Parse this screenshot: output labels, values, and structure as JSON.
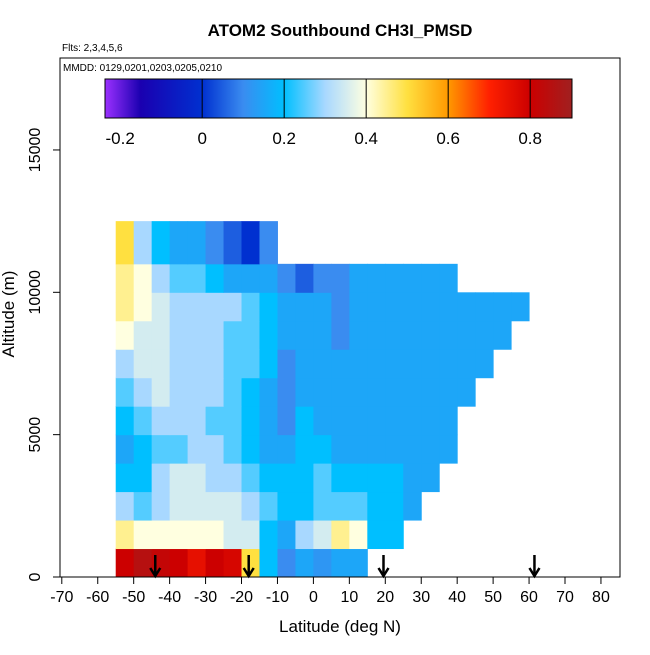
{
  "chart_data": {
    "type": "heatmap",
    "title": "ATOM2 Southbound CH3I_PMSD",
    "subtitle": "Flts: 2,3,4,5,6",
    "annotation": "MMDD: 0129,0201,0203,0205,0210",
    "x_label": "Latitude (deg N)",
    "y_label": "Altitude (m)",
    "xlim": [
      -70.5,
      85.3
    ],
    "ylim": [
      0,
      18230
    ],
    "xticks": [
      -70,
      -60,
      -50,
      -40,
      -30,
      -20,
      -10,
      0,
      10,
      20,
      30,
      40,
      50,
      60,
      70,
      80
    ],
    "yticks": [
      0,
      5000,
      10000,
      15000
    ],
    "x_edges": [
      -55,
      -50,
      -45,
      -40,
      -35,
      -30,
      -25,
      -20,
      -15,
      -10,
      -5,
      0,
      5,
      10,
      15,
      20,
      25,
      30,
      35,
      40,
      45,
      50,
      55,
      60
    ],
    "y_edges": [
      0,
      1000,
      2000,
      3000,
      4000,
      5000,
      6000,
      7000,
      8000,
      9000,
      10000,
      11000,
      12500
    ],
    "z": [
      [
        0.8,
        0.85,
        0.82,
        0.8,
        0.75,
        0.8,
        0.78,
        0.5,
        0.2,
        0.1,
        0.15,
        0.12,
        0.15,
        0.15,
        null,
        null,
        null,
        null,
        null,
        null,
        null,
        null,
        null
      ],
      [
        0.45,
        0.4,
        0.4,
        0.4,
        0.4,
        0.4,
        0.35,
        0.35,
        0.2,
        0.15,
        0.3,
        0.35,
        0.45,
        0.4,
        0.2,
        0.2,
        null,
        null,
        null,
        null,
        null,
        null,
        null
      ],
      [
        0.3,
        0.25,
        0.3,
        0.35,
        0.35,
        0.35,
        0.35,
        0.3,
        0.25,
        0.2,
        0.2,
        0.25,
        0.25,
        0.25,
        0.2,
        0.2,
        0.15,
        null,
        null,
        null,
        null,
        null,
        null
      ],
      [
        0.2,
        0.2,
        0.3,
        0.35,
        0.35,
        0.3,
        0.3,
        0.25,
        0.2,
        0.2,
        0.2,
        0.25,
        0.2,
        0.2,
        0.2,
        0.2,
        0.15,
        0.15,
        null,
        null,
        null,
        null,
        null
      ],
      [
        0.15,
        0.2,
        0.25,
        0.25,
        0.3,
        0.3,
        0.25,
        0.2,
        0.15,
        0.15,
        0.2,
        0.2,
        0.15,
        0.15,
        0.15,
        0.15,
        0.15,
        0.15,
        0.15,
        null,
        null,
        null,
        null
      ],
      [
        0.2,
        0.25,
        0.3,
        0.3,
        0.3,
        0.25,
        0.25,
        0.2,
        0.15,
        0.1,
        0.2,
        0.15,
        0.15,
        0.15,
        0.15,
        0.15,
        0.15,
        0.15,
        0.15,
        null,
        null,
        null,
        null
      ],
      [
        0.25,
        0.3,
        0.35,
        0.3,
        0.3,
        0.3,
        0.25,
        0.2,
        0.15,
        0.1,
        0.15,
        0.15,
        0.15,
        0.15,
        0.15,
        0.15,
        0.15,
        0.15,
        0.15,
        0.15,
        null,
        null,
        null
      ],
      [
        0.3,
        0.35,
        0.35,
        0.3,
        0.3,
        0.3,
        0.25,
        0.25,
        0.2,
        0.1,
        0.15,
        0.15,
        0.15,
        0.15,
        0.15,
        0.15,
        0.15,
        0.15,
        0.15,
        0.15,
        0.15,
        null,
        null
      ],
      [
        0.4,
        0.35,
        0.35,
        0.3,
        0.3,
        0.3,
        0.25,
        0.25,
        0.2,
        0.15,
        0.15,
        0.15,
        0.1,
        0.15,
        0.15,
        0.15,
        0.15,
        0.15,
        0.15,
        0.15,
        0.15,
        0.15,
        null
      ],
      [
        0.45,
        0.4,
        0.35,
        0.3,
        0.3,
        0.3,
        0.3,
        0.25,
        0.2,
        0.15,
        0.15,
        0.15,
        0.1,
        0.15,
        0.15,
        0.15,
        0.15,
        0.15,
        0.15,
        0.15,
        0.15,
        0.15,
        0.15
      ],
      [
        0.45,
        0.4,
        0.3,
        0.25,
        0.25,
        0.2,
        0.15,
        0.15,
        0.15,
        0.1,
        0.05,
        0.1,
        0.1,
        0.15,
        0.15,
        0.15,
        0.15,
        0.15,
        0.15,
        null,
        null,
        null,
        null
      ],
      [
        0.5,
        0.3,
        0.2,
        0.15,
        0.15,
        0.1,
        0.05,
        0.0,
        0.1,
        null,
        null,
        null,
        null,
        null,
        null,
        null,
        null,
        null,
        null,
        null,
        null,
        null,
        null
      ]
    ],
    "clim": [
      -0.237,
      0.902
    ],
    "cticks": [
      -0.2,
      0,
      0.2,
      0.4,
      0.6,
      0.8
    ],
    "color_stops": [
      {
        "value": -0.237,
        "color": "#9b30ff"
      },
      {
        "value": -0.15,
        "color": "#1a00b0"
      },
      {
        "value": 0,
        "color": "#0030d0"
      },
      {
        "value": 0.1,
        "color": "#3a8cf0"
      },
      {
        "value": 0.2,
        "color": "#00bfff"
      },
      {
        "value": 0.3,
        "color": "#a8d8ff"
      },
      {
        "value": 0.4,
        "color": "#ffffe0"
      },
      {
        "value": 0.5,
        "color": "#ffe040"
      },
      {
        "value": 0.6,
        "color": "#ff9900"
      },
      {
        "value": 0.7,
        "color": "#ff2000"
      },
      {
        "value": 0.8,
        "color": "#cc0000"
      },
      {
        "value": 0.902,
        "color": "#a02020"
      }
    ],
    "arrow_latitudes": [
      -44,
      -18,
      19.5,
      61.5
    ]
  }
}
